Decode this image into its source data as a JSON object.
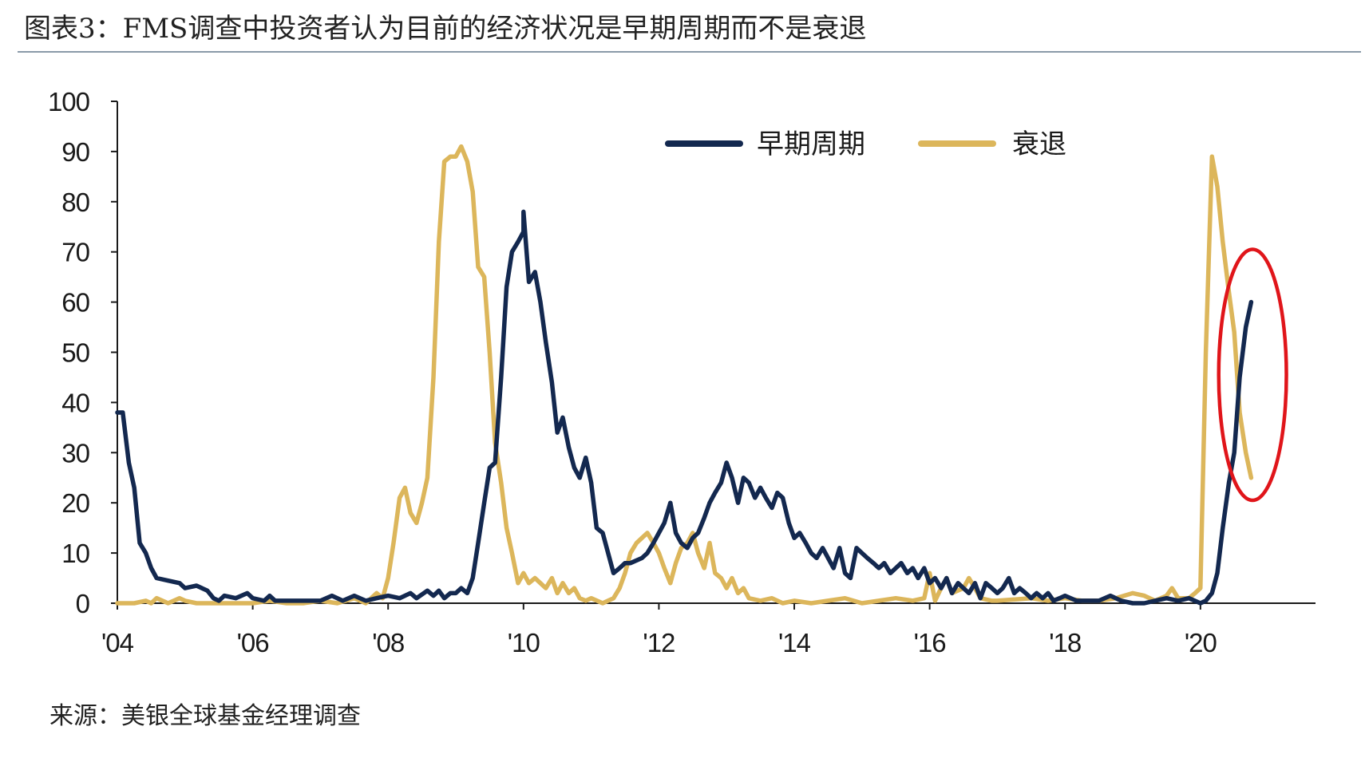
{
  "figure_title": "图表3：FMS调查中投资者认为目前的经济状况是早期周期而不是衰退",
  "source_note": "来源：美银全球基金经理调查",
  "colors": {
    "early_cycle": "#13284f",
    "recession": "#dcb65b",
    "highlight": "#e0151a",
    "axis": "#1a1a1a"
  },
  "chart_data": {
    "type": "line",
    "xlim": [
      2004,
      2021.7
    ],
    "ylim": [
      0,
      100
    ],
    "yticks": [
      "0",
      "10",
      "20",
      "30",
      "40",
      "50",
      "60",
      "70",
      "80",
      "90",
      "100"
    ],
    "xticks": [
      {
        "x": 2004,
        "label": "'04"
      },
      {
        "x": 2006,
        "label": "'06"
      },
      {
        "x": 2008,
        "label": "'08"
      },
      {
        "x": 2010,
        "label": "'10"
      },
      {
        "x": 2012,
        "label": "'12"
      },
      {
        "x": 2014,
        "label": "'14"
      },
      {
        "x": 2016,
        "label": "'16"
      },
      {
        "x": 2018,
        "label": "'18"
      },
      {
        "x": 2020,
        "label": "'20"
      }
    ],
    "legend_position": "top-right",
    "series": [
      {
        "name": "早期周期",
        "color": "#13284f",
        "points": [
          [
            2004.0,
            38
          ],
          [
            2004.08,
            38
          ],
          [
            2004.17,
            28
          ],
          [
            2004.25,
            23
          ],
          [
            2004.33,
            12
          ],
          [
            2004.42,
            10
          ],
          [
            2004.5,
            7
          ],
          [
            2004.58,
            5
          ],
          [
            2004.75,
            4.5
          ],
          [
            2004.92,
            4
          ],
          [
            2005.0,
            3
          ],
          [
            2005.17,
            3.5
          ],
          [
            2005.33,
            2.5
          ],
          [
            2005.42,
            1
          ],
          [
            2005.5,
            0.5
          ],
          [
            2005.58,
            1.5
          ],
          [
            2005.75,
            1
          ],
          [
            2005.92,
            2
          ],
          [
            2006.0,
            1
          ],
          [
            2006.17,
            0.5
          ],
          [
            2006.25,
            1.5
          ],
          [
            2006.33,
            0.5
          ],
          [
            2006.5,
            0.5
          ],
          [
            2006.75,
            0.5
          ],
          [
            2007.0,
            0.5
          ],
          [
            2007.17,
            1.5
          ],
          [
            2007.33,
            0.5
          ],
          [
            2007.5,
            1.5
          ],
          [
            2007.67,
            0.5
          ],
          [
            2007.83,
            1
          ],
          [
            2008.0,
            1.5
          ],
          [
            2008.17,
            1
          ],
          [
            2008.33,
            2
          ],
          [
            2008.42,
            1
          ],
          [
            2008.58,
            2.5
          ],
          [
            2008.67,
            1.5
          ],
          [
            2008.75,
            2.5
          ],
          [
            2008.83,
            1
          ],
          [
            2008.92,
            2
          ],
          [
            2009.0,
            2
          ],
          [
            2009.08,
            3
          ],
          [
            2009.17,
            2
          ],
          [
            2009.25,
            5
          ],
          [
            2009.33,
            12
          ],
          [
            2009.42,
            20
          ],
          [
            2009.5,
            27
          ],
          [
            2009.58,
            28
          ],
          [
            2009.67,
            45
          ],
          [
            2009.75,
            63
          ],
          [
            2009.83,
            70
          ],
          [
            2009.92,
            72
          ],
          [
            2010.0,
            74
          ],
          [
            2010.0,
            78
          ],
          [
            2010.08,
            64
          ],
          [
            2010.17,
            66
          ],
          [
            2010.25,
            60
          ],
          [
            2010.33,
            52
          ],
          [
            2010.42,
            44
          ],
          [
            2010.5,
            34
          ],
          [
            2010.58,
            37
          ],
          [
            2010.67,
            31
          ],
          [
            2010.75,
            27
          ],
          [
            2010.83,
            25
          ],
          [
            2010.92,
            29
          ],
          [
            2011.0,
            24
          ],
          [
            2011.08,
            15
          ],
          [
            2011.17,
            14
          ],
          [
            2011.25,
            10
          ],
          [
            2011.33,
            6
          ],
          [
            2011.42,
            7
          ],
          [
            2011.5,
            8
          ],
          [
            2011.58,
            8
          ],
          [
            2011.75,
            9
          ],
          [
            2011.83,
            10
          ],
          [
            2011.92,
            12
          ],
          [
            2012.0,
            14
          ],
          [
            2012.08,
            16
          ],
          [
            2012.17,
            20
          ],
          [
            2012.25,
            14
          ],
          [
            2012.33,
            12
          ],
          [
            2012.42,
            11
          ],
          [
            2012.5,
            13
          ],
          [
            2012.58,
            14
          ],
          [
            2012.67,
            17
          ],
          [
            2012.75,
            20
          ],
          [
            2012.83,
            22
          ],
          [
            2012.92,
            24
          ],
          [
            2013.0,
            28
          ],
          [
            2013.08,
            25
          ],
          [
            2013.17,
            20
          ],
          [
            2013.25,
            25
          ],
          [
            2013.33,
            24
          ],
          [
            2013.42,
            21
          ],
          [
            2013.5,
            23
          ],
          [
            2013.58,
            21
          ],
          [
            2013.67,
            19
          ],
          [
            2013.75,
            22
          ],
          [
            2013.83,
            21
          ],
          [
            2013.92,
            16
          ],
          [
            2014.0,
            13
          ],
          [
            2014.08,
            14
          ],
          [
            2014.17,
            12
          ],
          [
            2014.25,
            10
          ],
          [
            2014.33,
            9
          ],
          [
            2014.42,
            11
          ],
          [
            2014.5,
            9
          ],
          [
            2014.58,
            7
          ],
          [
            2014.67,
            11
          ],
          [
            2014.75,
            6
          ],
          [
            2014.83,
            5
          ],
          [
            2014.92,
            11
          ],
          [
            2015.0,
            10
          ],
          [
            2015.08,
            9
          ],
          [
            2015.17,
            8
          ],
          [
            2015.25,
            7
          ],
          [
            2015.33,
            8
          ],
          [
            2015.42,
            6
          ],
          [
            2015.5,
            7
          ],
          [
            2015.58,
            8
          ],
          [
            2015.67,
            6
          ],
          [
            2015.75,
            7
          ],
          [
            2015.83,
            5
          ],
          [
            2015.92,
            7
          ],
          [
            2016.0,
            4
          ],
          [
            2016.08,
            5
          ],
          [
            2016.17,
            3
          ],
          [
            2016.25,
            5
          ],
          [
            2016.33,
            2
          ],
          [
            2016.42,
            4
          ],
          [
            2016.5,
            3
          ],
          [
            2016.58,
            2
          ],
          [
            2016.67,
            4
          ],
          [
            2016.75,
            1
          ],
          [
            2016.83,
            4
          ],
          [
            2016.92,
            3
          ],
          [
            2017.0,
            2
          ],
          [
            2017.08,
            3
          ],
          [
            2017.17,
            5
          ],
          [
            2017.25,
            2
          ],
          [
            2017.33,
            3
          ],
          [
            2017.42,
            2
          ],
          [
            2017.5,
            1
          ],
          [
            2017.58,
            2
          ],
          [
            2017.67,
            1
          ],
          [
            2017.75,
            2
          ],
          [
            2017.83,
            0.5
          ],
          [
            2017.92,
            1
          ],
          [
            2018.0,
            1.5
          ],
          [
            2018.17,
            0.5
          ],
          [
            2018.33,
            0.5
          ],
          [
            2018.5,
            0.5
          ],
          [
            2018.67,
            1.5
          ],
          [
            2018.83,
            0.5
          ],
          [
            2019.0,
            0
          ],
          [
            2019.17,
            0
          ],
          [
            2019.33,
            0.5
          ],
          [
            2019.5,
            1
          ],
          [
            2019.67,
            0.5
          ],
          [
            2019.83,
            1
          ],
          [
            2020.0,
            0
          ],
          [
            2020.08,
            0.5
          ],
          [
            2020.17,
            2
          ],
          [
            2020.25,
            6
          ],
          [
            2020.33,
            15
          ],
          [
            2020.42,
            24
          ],
          [
            2020.5,
            30
          ],
          [
            2020.58,
            45
          ],
          [
            2020.67,
            55
          ],
          [
            2020.75,
            60
          ]
        ]
      },
      {
        "name": "衰退",
        "color": "#dcb65b",
        "points": [
          [
            2004.0,
            0
          ],
          [
            2004.25,
            0
          ],
          [
            2004.42,
            0.5
          ],
          [
            2004.5,
            0
          ],
          [
            2004.58,
            1
          ],
          [
            2004.75,
            0
          ],
          [
            2004.92,
            1
          ],
          [
            2005.0,
            0.5
          ],
          [
            2005.17,
            0
          ],
          [
            2005.5,
            0
          ],
          [
            2005.75,
            0
          ],
          [
            2006.0,
            0
          ],
          [
            2006.25,
            0.5
          ],
          [
            2006.5,
            0
          ],
          [
            2006.75,
            0
          ],
          [
            2007.0,
            0.5
          ],
          [
            2007.25,
            0
          ],
          [
            2007.5,
            1
          ],
          [
            2007.67,
            0
          ],
          [
            2007.83,
            2
          ],
          [
            2007.92,
            1
          ],
          [
            2008.0,
            5
          ],
          [
            2008.08,
            12
          ],
          [
            2008.17,
            21
          ],
          [
            2008.25,
            23
          ],
          [
            2008.33,
            18
          ],
          [
            2008.42,
            16
          ],
          [
            2008.5,
            20
          ],
          [
            2008.58,
            25
          ],
          [
            2008.67,
            45
          ],
          [
            2008.75,
            72
          ],
          [
            2008.83,
            88
          ],
          [
            2008.92,
            89
          ],
          [
            2009.0,
            89
          ],
          [
            2009.08,
            91
          ],
          [
            2009.17,
            88
          ],
          [
            2009.25,
            82
          ],
          [
            2009.33,
            67
          ],
          [
            2009.42,
            65
          ],
          [
            2009.5,
            50
          ],
          [
            2009.58,
            32
          ],
          [
            2009.67,
            24
          ],
          [
            2009.75,
            15
          ],
          [
            2009.83,
            10
          ],
          [
            2009.92,
            4
          ],
          [
            2010.0,
            6
          ],
          [
            2010.08,
            4
          ],
          [
            2010.17,
            5
          ],
          [
            2010.25,
            4
          ],
          [
            2010.33,
            3
          ],
          [
            2010.42,
            5
          ],
          [
            2010.5,
            2
          ],
          [
            2010.58,
            4
          ],
          [
            2010.67,
            2
          ],
          [
            2010.75,
            3
          ],
          [
            2010.83,
            1
          ],
          [
            2010.92,
            0.5
          ],
          [
            2011.0,
            1
          ],
          [
            2011.17,
            0
          ],
          [
            2011.33,
            1
          ],
          [
            2011.42,
            3
          ],
          [
            2011.5,
            6
          ],
          [
            2011.58,
            10
          ],
          [
            2011.67,
            12
          ],
          [
            2011.75,
            13
          ],
          [
            2011.83,
            14
          ],
          [
            2011.92,
            12
          ],
          [
            2012.0,
            10
          ],
          [
            2012.08,
            7
          ],
          [
            2012.17,
            4
          ],
          [
            2012.25,
            8
          ],
          [
            2012.33,
            11
          ],
          [
            2012.42,
            12
          ],
          [
            2012.5,
            14
          ],
          [
            2012.58,
            10
          ],
          [
            2012.67,
            7
          ],
          [
            2012.75,
            12
          ],
          [
            2012.83,
            6
          ],
          [
            2012.92,
            5
          ],
          [
            2013.0,
            3
          ],
          [
            2013.08,
            5
          ],
          [
            2013.17,
            2
          ],
          [
            2013.25,
            3
          ],
          [
            2013.33,
            1
          ],
          [
            2013.5,
            0.5
          ],
          [
            2013.67,
            1
          ],
          [
            2013.83,
            0
          ],
          [
            2014.0,
            0.5
          ],
          [
            2014.25,
            0
          ],
          [
            2014.5,
            0.5
          ],
          [
            2014.75,
            1
          ],
          [
            2015.0,
            0
          ],
          [
            2015.25,
            0.5
          ],
          [
            2015.5,
            1
          ],
          [
            2015.75,
            0.5
          ],
          [
            2015.92,
            1
          ],
          [
            2016.0,
            6
          ],
          [
            2016.08,
            0.5
          ],
          [
            2016.17,
            3
          ],
          [
            2016.25,
            5
          ],
          [
            2016.33,
            2
          ],
          [
            2016.5,
            3
          ],
          [
            2016.58,
            5
          ],
          [
            2016.67,
            3
          ],
          [
            2016.75,
            1
          ],
          [
            2016.92,
            0.5
          ],
          [
            2017.0,
            0.5
          ],
          [
            2017.5,
            1
          ],
          [
            2017.75,
            0.5
          ],
          [
            2018.0,
            1
          ],
          [
            2018.25,
            0.5
          ],
          [
            2018.5,
            0.5
          ],
          [
            2018.75,
            1
          ],
          [
            2019.0,
            2
          ],
          [
            2019.17,
            1.5
          ],
          [
            2019.33,
            0.5
          ],
          [
            2019.5,
            1.5
          ],
          [
            2019.58,
            3
          ],
          [
            2019.67,
            1
          ],
          [
            2019.83,
            1
          ],
          [
            2019.92,
            2
          ],
          [
            2020.0,
            3
          ],
          [
            2020.08,
            50
          ],
          [
            2020.17,
            89
          ],
          [
            2020.25,
            83
          ],
          [
            2020.33,
            72
          ],
          [
            2020.42,
            62
          ],
          [
            2020.5,
            54
          ],
          [
            2020.58,
            38
          ],
          [
            2020.67,
            30
          ],
          [
            2020.75,
            25
          ]
        ]
      }
    ],
    "annotation": {
      "shape": "ellipse",
      "color": "#e0151a",
      "center_x": 2020.77,
      "center_y": 45.5,
      "x_halfwidth": 0.5,
      "y_halfwidth": 25
    }
  }
}
